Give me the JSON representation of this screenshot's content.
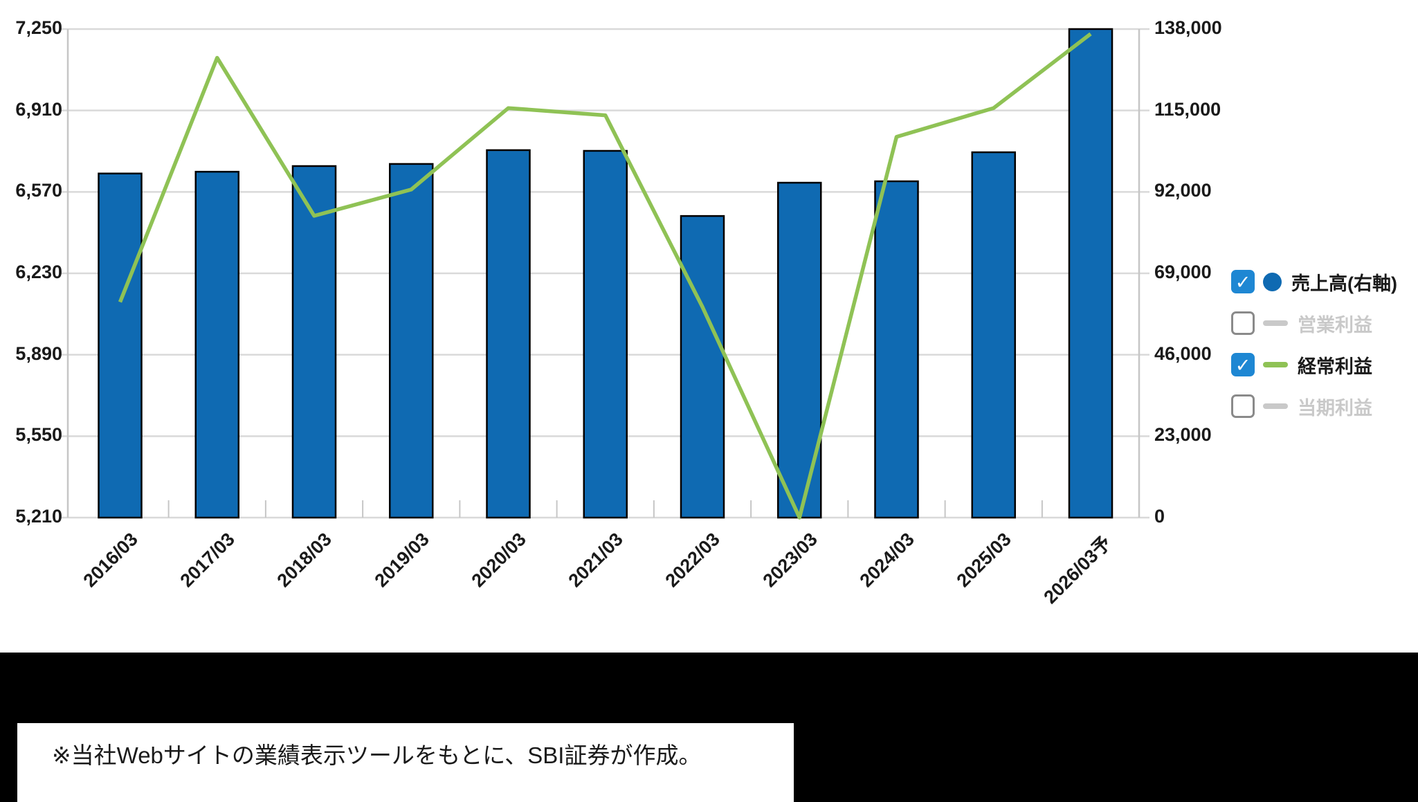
{
  "chart_data": {
    "type": "bar",
    "title": "",
    "categories": [
      "2016/03",
      "2017/03",
      "2018/03",
      "2019/03",
      "2020/03",
      "2021/03",
      "2022/03",
      "2023/03",
      "2024/03",
      "2025/03",
      "2026/03予"
    ],
    "series": [
      {
        "name": "売上高(右軸)",
        "type": "bar",
        "axis": "right",
        "color": "#0f6ab2",
        "border_color": "#000000",
        "visible": true,
        "values": [
          97200,
          97700,
          99300,
          99900,
          103800,
          103600,
          85200,
          94600,
          95000,
          103200,
          138000
        ]
      },
      {
        "name": "営業利益",
        "type": "line",
        "axis": "left",
        "color": "#c9c9c9",
        "visible": false,
        "values": null
      },
      {
        "name": "経常利益",
        "type": "line",
        "axis": "left",
        "color": "#8fc255",
        "visible": true,
        "values": [
          6110,
          7130,
          6470,
          6580,
          6920,
          6890,
          6090,
          5210,
          6800,
          6920,
          7230
        ]
      },
      {
        "name": "当期利益",
        "type": "line",
        "axis": "left",
        "color": "#c9c9c9",
        "visible": false,
        "values": null
      }
    ],
    "left_axis": {
      "min": 5210,
      "max": 7250,
      "ticks": [
        7250,
        6910,
        6570,
        6230,
        5890,
        5550,
        5210
      ],
      "tick_labels": [
        "7,250",
        "6,910",
        "6,570",
        "6,230",
        "5,890",
        "5,550",
        "5,210"
      ]
    },
    "right_axis": {
      "min": 0,
      "max": 138000,
      "ticks": [
        138000,
        115000,
        92000,
        69000,
        46000,
        23000,
        0
      ],
      "tick_labels": [
        "138,000",
        "115,000",
        "92,000",
        "69,000",
        "46,000",
        "23,000",
        "0"
      ]
    },
    "grid": true,
    "legend_position": "right"
  },
  "legend": {
    "items": [
      {
        "label": "売上高(右軸)",
        "checked": true,
        "marker": "circle",
        "marker_color": "#0f6ab2",
        "label_color": "#1a1a1a"
      },
      {
        "label": "営業利益",
        "checked": false,
        "marker": "dash",
        "marker_color": "#c9c9c9",
        "label_color": "#c9c9c9"
      },
      {
        "label": "経常利益",
        "checked": true,
        "marker": "dash",
        "marker_color": "#8fc255",
        "label_color": "#1a1a1a"
      },
      {
        "label": "当期利益",
        "checked": false,
        "marker": "dash",
        "marker_color": "#c9c9c9",
        "label_color": "#c9c9c9"
      }
    ]
  },
  "footer": {
    "note": "※当社Webサイトの業績表示ツールをもとに、SBI証券が作成。"
  },
  "colors": {
    "bar": "#0f6ab2",
    "line": "#8fc255",
    "grid": "#d9d9d9",
    "axis": "#c6c6c6",
    "checkbox_checked": "#1e87d3",
    "disabled_text": "#c9c9c9"
  }
}
